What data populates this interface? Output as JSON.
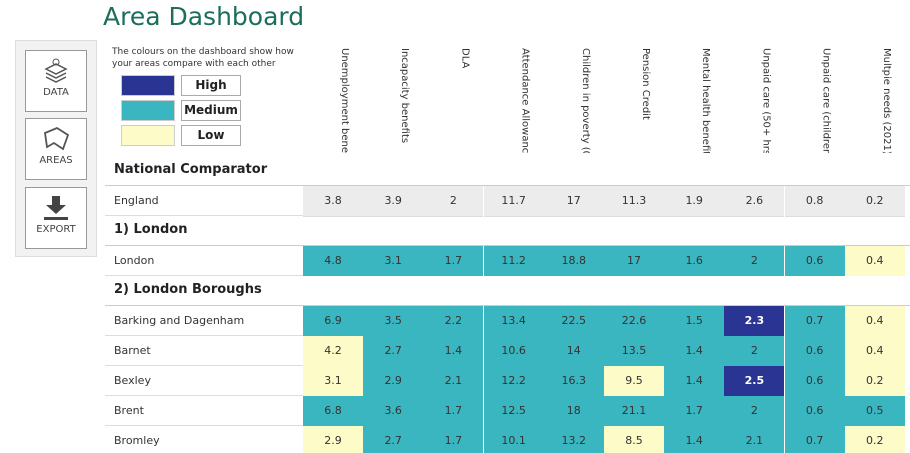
{
  "header": {
    "title": "Area Dashboard"
  },
  "sidebar": {
    "buttons": [
      "DATA",
      "AREAS",
      "EXPORT"
    ]
  },
  "legend": {
    "note": "The colours on the dashboard show how your areas compare with each other",
    "items": [
      {
        "label": "High",
        "color": "#2a3593"
      },
      {
        "label": "Medium",
        "color": "#3ab6c0"
      },
      {
        "label": "Low",
        "color": "#fdfbc8"
      }
    ]
  },
  "table": {
    "columns": [
      "Unemployment benefit",
      "Incapacity benefits",
      "DLA",
      "Attendance Allowance",
      "Children in poverty (0-",
      "Pension Credit",
      "Mental health benefits",
      "Unpaid care (50+ hrs)",
      "Unpaid care (children)",
      "Multpie needs (2021)"
    ],
    "sections": [
      {
        "title": "National Comparator",
        "rows": [
          {
            "name": "England",
            "values": [
              3.8,
              3.9,
              2,
              11.7,
              17,
              11.3,
              1.9,
              2.6,
              0.8,
              0.2
            ]
          }
        ]
      },
      {
        "title": "1) London",
        "rows": [
          {
            "name": "London",
            "values": [
              4.8,
              3.1,
              1.7,
              11.2,
              18.8,
              17,
              1.6,
              2,
              0.6,
              0.4
            ],
            "levels": [
              "Medium",
              "Medium",
              "Medium",
              "Medium",
              "Medium",
              "Medium",
              "Medium",
              "Medium",
              "Medium",
              "Low"
            ]
          }
        ]
      },
      {
        "title": "2) London Boroughs",
        "rows": [
          {
            "name": "Barking and Dagenham",
            "values": [
              6.9,
              3.5,
              2.2,
              13.4,
              22.5,
              22.6,
              1.5,
              2.3,
              0.7,
              0.4
            ],
            "levels": [
              "Medium",
              "Medium",
              "Medium",
              "Medium",
              "Medium",
              "Medium",
              "Medium",
              "High",
              "Medium",
              "Low"
            ]
          },
          {
            "name": "Barnet",
            "values": [
              4.2,
              2.7,
              1.4,
              10.6,
              14,
              13.5,
              1.4,
              2,
              0.6,
              0.4
            ],
            "levels": [
              "Low",
              "Medium",
              "Medium",
              "Medium",
              "Medium",
              "Medium",
              "Medium",
              "Medium",
              "Medium",
              "Low"
            ]
          },
          {
            "name": "Bexley",
            "values": [
              3.1,
              2.9,
              2.1,
              12.2,
              16.3,
              9.5,
              1.4,
              2.5,
              0.6,
              0.2
            ],
            "levels": [
              "Low",
              "Medium",
              "Medium",
              "Medium",
              "Medium",
              "Low",
              "Medium",
              "High",
              "Medium",
              "Low"
            ]
          },
          {
            "name": "Brent",
            "values": [
              6.8,
              3.6,
              1.7,
              12.5,
              18,
              21.1,
              1.7,
              2,
              0.6,
              0.5
            ],
            "levels": [
              "Medium",
              "Medium",
              "Medium",
              "Medium",
              "Medium",
              "Medium",
              "Medium",
              "Medium",
              "Medium",
              "Medium"
            ]
          },
          {
            "name": "Bromley",
            "values": [
              2.9,
              2.7,
              1.7,
              10.1,
              13.2,
              8.5,
              1.4,
              2.1,
              0.7,
              0.2
            ],
            "levels": [
              "Low",
              "Medium",
              "Medium",
              "Medium",
              "Medium",
              "Low",
              "Medium",
              "Medium",
              "Medium",
              "Low"
            ]
          }
        ]
      }
    ]
  }
}
